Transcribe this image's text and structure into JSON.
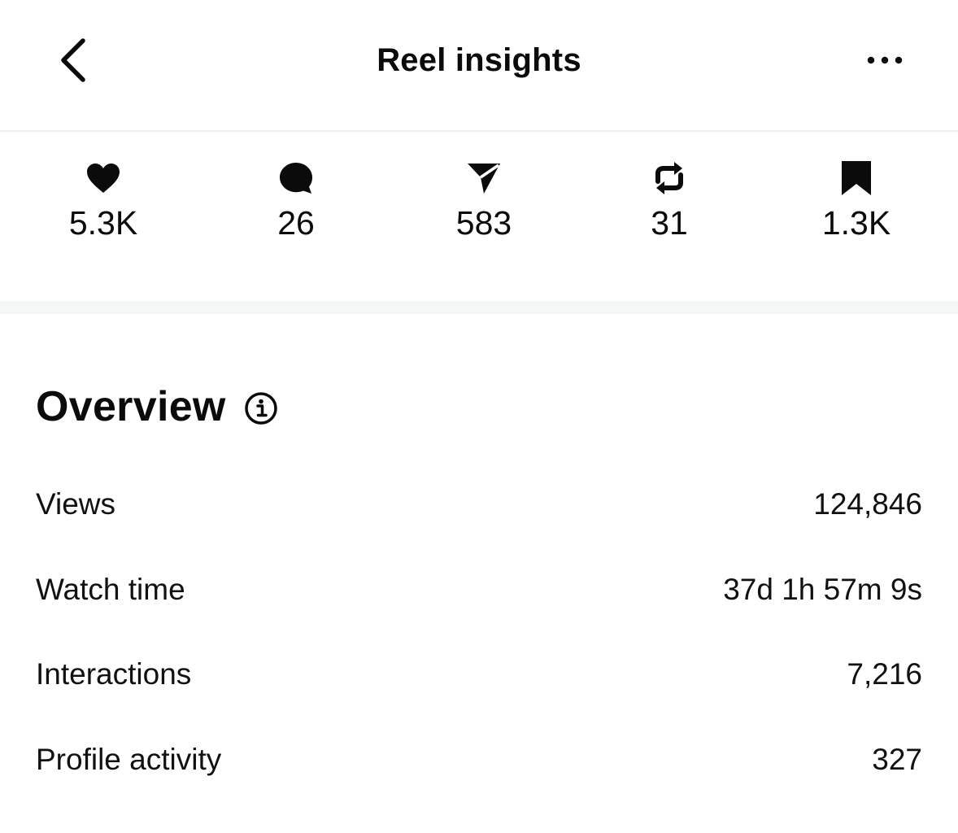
{
  "header": {
    "title": "Reel insights",
    "back_icon": "chevron-left-icon",
    "more_icon": "more-horizontal-icon"
  },
  "stats": [
    {
      "icon": "heart-icon",
      "value": "5.3K"
    },
    {
      "icon": "comment-icon",
      "value": "26"
    },
    {
      "icon": "share-icon",
      "value": "583"
    },
    {
      "icon": "repost-icon",
      "value": "31"
    },
    {
      "icon": "bookmark-icon",
      "value": "1.3K"
    }
  ],
  "overview": {
    "title": "Overview",
    "info_icon": "info-icon",
    "rows": [
      {
        "label": "Views",
        "value": "124,846"
      },
      {
        "label": "Watch time",
        "value": "37d 1h 57m 9s"
      },
      {
        "label": "Interactions",
        "value": "7,216"
      },
      {
        "label": "Profile activity",
        "value": "327"
      }
    ]
  },
  "colors": {
    "text": "#0b0b0b",
    "divider": "#efefef",
    "band": "#f5f6f6",
    "background": "#ffffff"
  }
}
